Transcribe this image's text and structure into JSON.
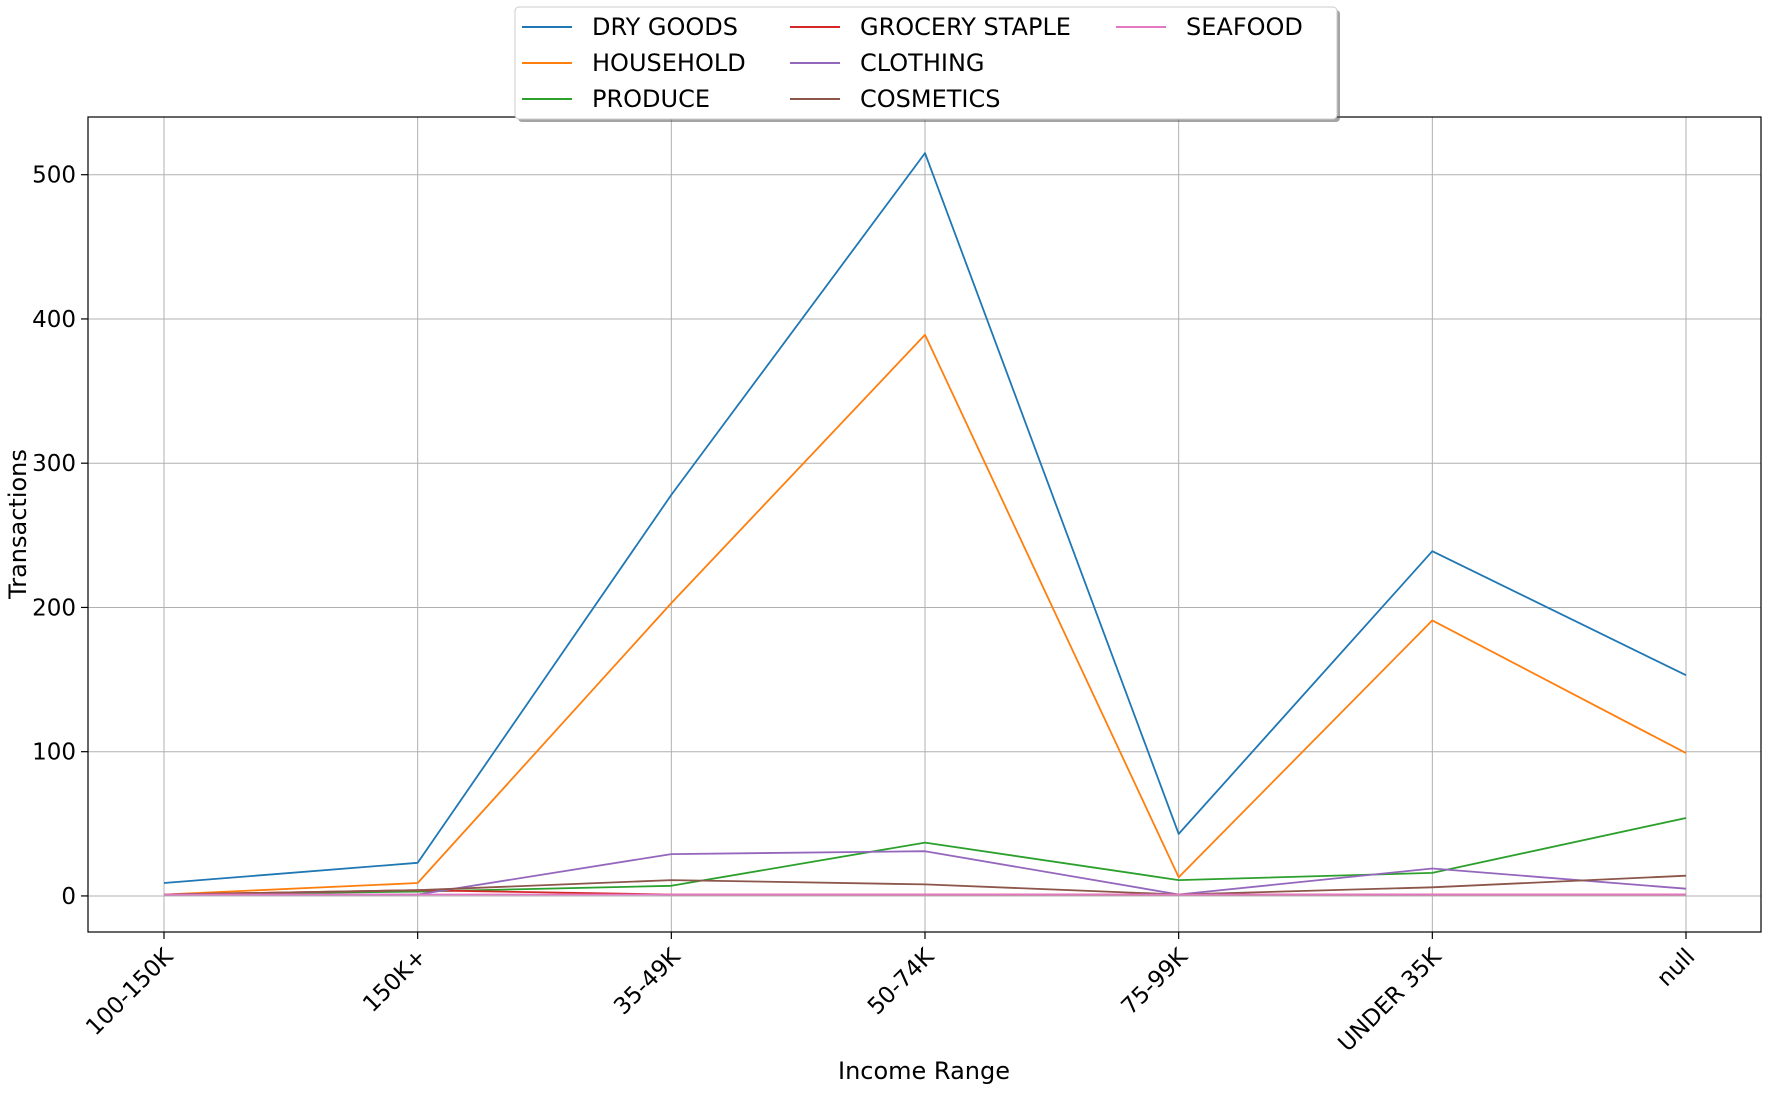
{
  "chart_data": {
    "type": "line",
    "xlabel": "Income Range",
    "ylabel": "Transactions",
    "categories": [
      "100-150K",
      "150K+",
      "35-49K",
      "50-74K",
      "75-99K",
      "UNDER 35K",
      "null"
    ],
    "ylim": [
      -25,
      540
    ],
    "yticks": [
      0,
      100,
      200,
      300,
      400,
      500
    ],
    "grid": true,
    "legend_position": "top-center",
    "series": [
      {
        "name": "DRY GOODS",
        "color": "#1f77b4",
        "values": [
          9,
          23,
          278,
          515,
          43,
          239,
          153
        ]
      },
      {
        "name": "HOUSEHOLD",
        "color": "#ff7f0e",
        "values": [
          1,
          9,
          203,
          389,
          13,
          191,
          99
        ]
      },
      {
        "name": "PRODUCE",
        "color": "#2ca02c",
        "values": [
          1,
          3,
          7,
          37,
          11,
          16,
          54
        ]
      },
      {
        "name": "GROCERY STAPLE",
        "color": "#d62728",
        "values": [
          1,
          4,
          1,
          1,
          1,
          1,
          1
        ]
      },
      {
        "name": "CLOTHING",
        "color": "#9467bd",
        "values": [
          1,
          1,
          29,
          31,
          1,
          19,
          5
        ]
      },
      {
        "name": "COSMETICS",
        "color": "#8c564b",
        "values": [
          1,
          4,
          11,
          8,
          1,
          6,
          14
        ]
      },
      {
        "name": "SEAFOOD",
        "color": "#e377c2",
        "values": [
          1,
          1,
          1,
          1,
          1,
          1,
          1
        ]
      }
    ]
  }
}
